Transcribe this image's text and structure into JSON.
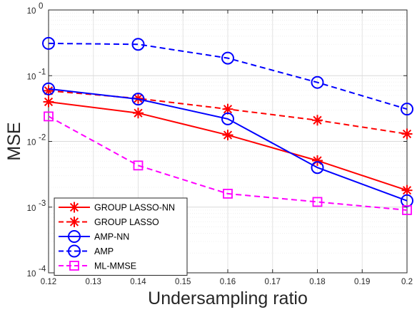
{
  "chart_data": {
    "type": "line",
    "xlabel": "Undersampling ratio",
    "ylabel": "MSE",
    "xlim": [
      0.12,
      0.2
    ],
    "ylim": [
      0.0001,
      1
    ],
    "yscale": "log",
    "grid": true,
    "legend_position": "bottom-left",
    "x": [
      0.12,
      0.14,
      0.16,
      0.18,
      0.2
    ],
    "x_tick_labels": [
      "0.12",
      "0.13",
      "0.14",
      "0.15",
      "0.16",
      "0.17",
      "0.18",
      "0.19",
      "0.2"
    ],
    "y_tick_labels": [
      {
        "base": "10",
        "exp": "-4"
      },
      {
        "base": "10",
        "exp": "-3"
      },
      {
        "base": "10",
        "exp": "-2"
      },
      {
        "base": "10",
        "exp": "-1"
      },
      {
        "base": "10",
        "exp": "0"
      }
    ],
    "series": [
      {
        "name": "GROUP LASSO-NN",
        "values": [
          0.04,
          0.027,
          0.0125,
          0.0051,
          0.0018
        ],
        "color": "#ff0000",
        "dash": "solid",
        "marker": "asterisk"
      },
      {
        "name": "GROUP LASSO",
        "values": [
          0.059,
          0.045,
          0.031,
          0.021,
          0.013
        ],
        "color": "#ff0000",
        "dash": "dashed",
        "marker": "asterisk"
      },
      {
        "name": "AMP-NN",
        "values": [
          0.063,
          0.044,
          0.022,
          0.004,
          0.00125
        ],
        "color": "#0000ff",
        "dash": "solid",
        "marker": "circle"
      },
      {
        "name": "AMP",
        "values": [
          0.31,
          0.3,
          0.185,
          0.079,
          0.031
        ],
        "color": "#0000ff",
        "dash": "dashed",
        "marker": "circle"
      },
      {
        "name": "ML-MMSE",
        "values": [
          0.024,
          0.0043,
          0.0016,
          0.0012,
          0.0009
        ],
        "color": "#ff00ff",
        "dash": "dashed",
        "marker": "square"
      }
    ]
  }
}
